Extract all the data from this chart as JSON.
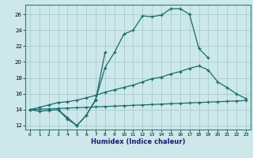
{
  "xlabel": "Humidex (Indice chaleur)",
  "bg_color": "#cce8ea",
  "grid_color": "#aacccc",
  "line_color": "#1a6b6b",
  "xlim": [
    -0.5,
    23.5
  ],
  "ylim": [
    11.5,
    27.2
  ],
  "xticks": [
    0,
    1,
    2,
    3,
    4,
    5,
    6,
    7,
    8,
    9,
    10,
    11,
    12,
    13,
    14,
    15,
    16,
    17,
    18,
    19,
    20,
    21,
    22,
    23
  ],
  "yticks": [
    12,
    14,
    16,
    18,
    20,
    22,
    24,
    26
  ],
  "line1_x": [
    0,
    1,
    2,
    3,
    4,
    5,
    6,
    7,
    8,
    9,
    10,
    11,
    12,
    13,
    14,
    15,
    16,
    17,
    18,
    19,
    22,
    23
  ],
  "line1_y": [
    14.0,
    13.8,
    13.9,
    14.0,
    12.8,
    12.0,
    13.3,
    15.3,
    19.3,
    21.2,
    23.5,
    24.0,
    25.8,
    25.7,
    25.9,
    26.7,
    26.7,
    26.0,
    21.7,
    20.5,
    null,
    null
  ],
  "line2_x": [
    3,
    4,
    5,
    6,
    7,
    8
  ],
  "line2_y": [
    14.0,
    13.0,
    12.0,
    13.3,
    15.2,
    21.2
  ],
  "line3_x": [
    0,
    1,
    2,
    3,
    4,
    5,
    6,
    7,
    8,
    9,
    10,
    11,
    12,
    13,
    14,
    15,
    16,
    17,
    18,
    19,
    20,
    21,
    22,
    23
  ],
  "line3_y": [
    14.0,
    14.3,
    14.6,
    14.9,
    15.0,
    15.2,
    15.5,
    15.8,
    16.2,
    16.5,
    16.8,
    17.1,
    17.5,
    17.9,
    18.1,
    18.5,
    18.8,
    19.2,
    19.5,
    19.0,
    17.5,
    16.8,
    16.0,
    15.4
  ],
  "line4_x": [
    0,
    1,
    2,
    3,
    4,
    5,
    6,
    7,
    8,
    9,
    10,
    11,
    12,
    13,
    14,
    15,
    16,
    17,
    18,
    19,
    20,
    21,
    22,
    23
  ],
  "line4_y": [
    14.0,
    14.05,
    14.1,
    14.15,
    14.2,
    14.25,
    14.3,
    14.35,
    14.4,
    14.45,
    14.5,
    14.55,
    14.6,
    14.65,
    14.7,
    14.75,
    14.8,
    14.85,
    14.9,
    14.95,
    15.0,
    15.05,
    15.1,
    15.15
  ]
}
